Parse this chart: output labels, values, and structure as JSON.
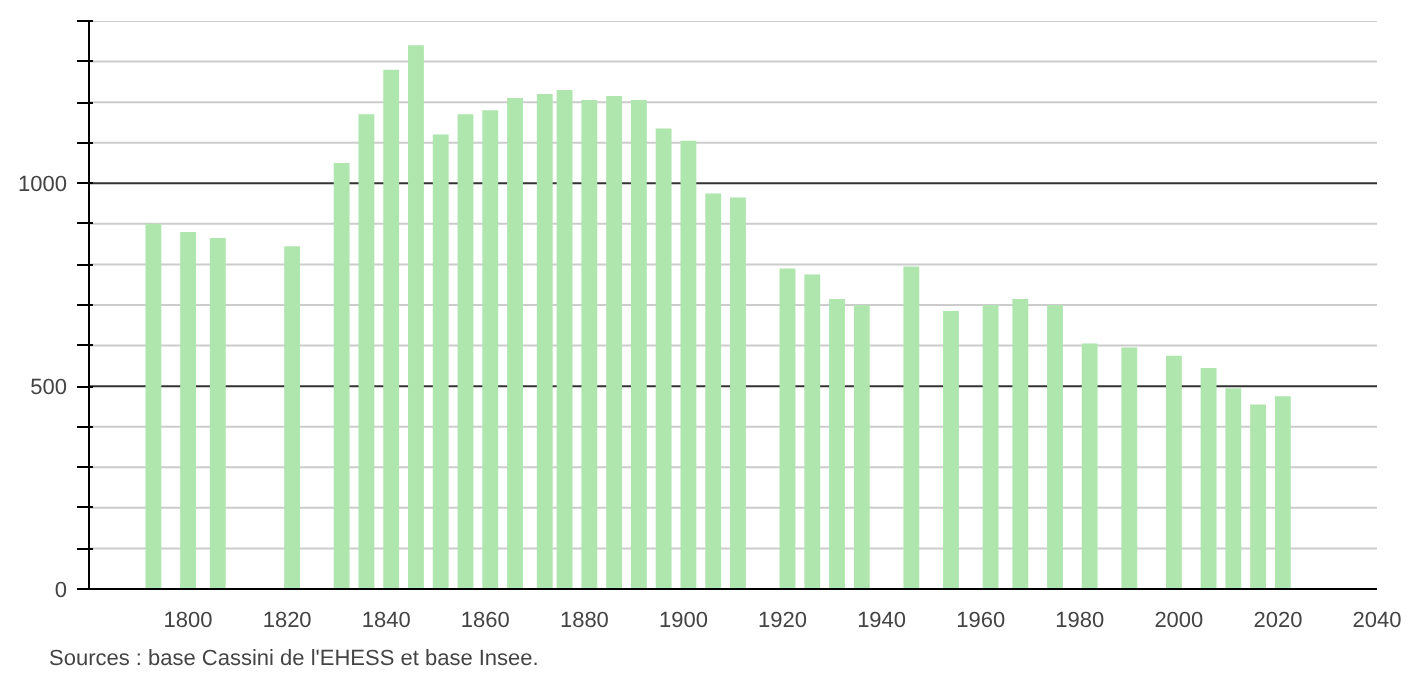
{
  "chart_data": {
    "type": "bar",
    "x": [
      1793,
      1800,
      1806,
      1821,
      1831,
      1836,
      1841,
      1846,
      1851,
      1856,
      1861,
      1866,
      1872,
      1876,
      1881,
      1886,
      1891,
      1896,
      1901,
      1906,
      1911,
      1921,
      1926,
      1931,
      1936,
      1946,
      1954,
      1962,
      1968,
      1975,
      1982,
      1990,
      1999,
      2006,
      2011,
      2016,
      2021
    ],
    "values": [
      900,
      880,
      865,
      845,
      1050,
      1170,
      1280,
      1340,
      1120,
      1170,
      1180,
      1210,
      1220,
      1230,
      1205,
      1215,
      1205,
      1135,
      1105,
      975,
      965,
      790,
      775,
      715,
      700,
      795,
      685,
      700,
      715,
      700,
      605,
      595,
      575,
      545,
      495,
      455,
      475
    ],
    "color": "#aee6ae",
    "xlim": [
      1780,
      2040
    ],
    "xticks": [
      1800,
      1820,
      1840,
      1860,
      1880,
      1900,
      1920,
      1940,
      1960,
      1980,
      2000,
      2020,
      2040
    ],
    "ylim": [
      0,
      1400
    ],
    "yticks": [
      0,
      {
        "value": 100,
        "label": null
      },
      {
        "value": 200,
        "label": null
      },
      {
        "value": 300,
        "label": null
      },
      {
        "value": 400,
        "label": null
      },
      500,
      {
        "value": 600,
        "label": null
      },
      {
        "value": 700,
        "label": null
      },
      {
        "value": 800,
        "label": null
      },
      {
        "value": 900,
        "label": null
      },
      1000,
      {
        "value": 1100,
        "label": null
      },
      {
        "value": 1200,
        "label": null
      },
      {
        "value": 1300,
        "label": null
      },
      {
        "value": 1400,
        "label": null
      }
    ],
    "grid": "y",
    "annotations": [
      "Sources : base Cassini de l'EHESS et base Insee."
    ]
  }
}
